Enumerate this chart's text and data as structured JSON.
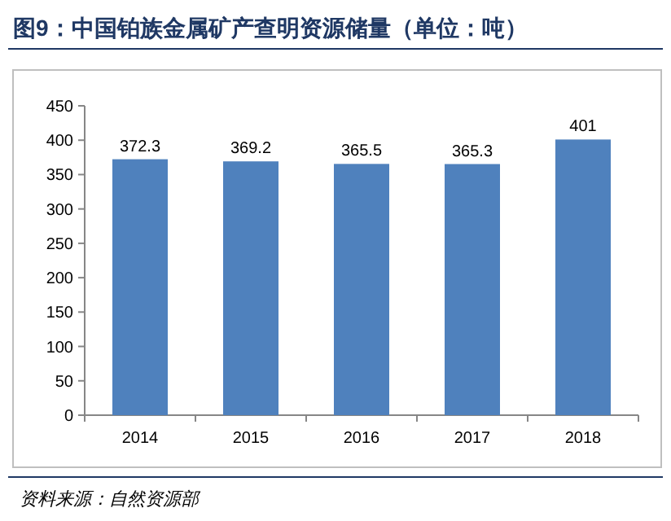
{
  "chart_data": {
    "type": "bar",
    "title": "图9：中国铂族金属矿产查明资源储量（单位：吨）",
    "categories": [
      "2014",
      "2015",
      "2016",
      "2017",
      "2018"
    ],
    "values": [
      372.3,
      369.2,
      365.5,
      365.3,
      401
    ],
    "color": "#4f81bd",
    "data_labels": true,
    "grid": false,
    "ylim": [
      0,
      450
    ],
    "yticks": [
      0,
      50,
      100,
      150,
      200,
      250,
      300,
      350,
      400,
      450
    ],
    "annotations": [
      "资料来源：自然资源部"
    ]
  }
}
